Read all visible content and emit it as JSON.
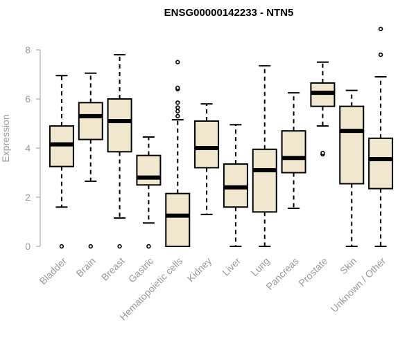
{
  "chart_data": {
    "type": "boxplot",
    "title": "ENSG00000142233 - NTN5",
    "ylabel": "Expression",
    "xlabel": "",
    "ylim": [
      0,
      8.2
    ],
    "yticks": [
      0,
      2,
      4,
      6,
      8
    ],
    "box_fill": "#efe8cf",
    "categories": [
      "Bladder",
      "Brain",
      "Breast",
      "Gastric",
      "Hematopoietic cells",
      "Kidney",
      "Liver",
      "Lung",
      "Pancreas",
      "Prostate",
      "Skin",
      "Unknown / Other"
    ],
    "boxes": [
      {
        "category": "Bladder",
        "min": 1.6,
        "q1": 3.25,
        "median": 4.15,
        "q3": 4.9,
        "max": 6.95,
        "outliers": [
          0
        ]
      },
      {
        "category": "Brain",
        "min": 2.65,
        "q1": 4.35,
        "median": 5.3,
        "q3": 5.85,
        "max": 7.05,
        "outliers": [
          0
        ]
      },
      {
        "category": "Breast",
        "min": 1.15,
        "q1": 3.85,
        "median": 5.1,
        "q3": 6.0,
        "max": 7.8,
        "outliers": [
          0
        ]
      },
      {
        "category": "Gastric",
        "min": 0.95,
        "q1": 2.5,
        "median": 2.8,
        "q3": 3.7,
        "max": 4.45,
        "outliers": [
          0
        ]
      },
      {
        "category": "Hematopoietic cells",
        "min": 0.0,
        "q1": 0.0,
        "median": 1.25,
        "q3": 2.15,
        "max": 5.15,
        "outliers": [
          5.3,
          5.5,
          5.65,
          5.85,
          6.4,
          6.45,
          7.5
        ]
      },
      {
        "category": "Kidney",
        "min": 1.3,
        "q1": 3.2,
        "median": 4.0,
        "q3": 5.1,
        "max": 5.8,
        "outliers": []
      },
      {
        "category": "Liver",
        "min": 0.0,
        "q1": 1.6,
        "median": 2.4,
        "q3": 3.35,
        "max": 4.95,
        "outliers": []
      },
      {
        "category": "Lung",
        "min": 0.0,
        "q1": 1.4,
        "median": 3.1,
        "q3": 3.95,
        "max": 7.35,
        "outliers": []
      },
      {
        "category": "Pancreas",
        "min": 1.55,
        "q1": 3.0,
        "median": 3.6,
        "q3": 4.7,
        "max": 6.25,
        "outliers": []
      },
      {
        "category": "Prostate",
        "min": 4.9,
        "q1": 5.7,
        "median": 6.25,
        "q3": 6.65,
        "max": 7.5,
        "outliers": [
          3.75,
          3.8
        ]
      },
      {
        "category": "Skin",
        "min": 0.0,
        "q1": 2.55,
        "median": 4.7,
        "q3": 5.7,
        "max": 6.35,
        "outliers": []
      },
      {
        "category": "Unknown / Other",
        "min": 0.0,
        "q1": 2.35,
        "median": 3.55,
        "q3": 4.4,
        "max": 6.9,
        "outliers": [
          7.8,
          8.85
        ]
      }
    ]
  }
}
